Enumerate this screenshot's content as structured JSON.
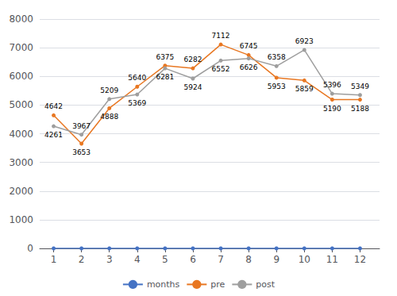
{
  "chart_data": {
    "type": "line",
    "x": [
      1,
      2,
      3,
      4,
      5,
      6,
      7,
      8,
      9,
      10,
      11,
      12
    ],
    "xlim": [
      0.5,
      12.7
    ],
    "xticks": [
      1,
      2,
      3,
      4,
      5,
      6,
      7,
      8,
      9,
      10,
      11,
      12
    ],
    "ylim": [
      0,
      8000
    ],
    "yticks": [
      0,
      1000,
      2000,
      3000,
      4000,
      5000,
      6000,
      7000,
      8000
    ],
    "grid": true,
    "legend": "bottom",
    "series": [
      {
        "name": "months",
        "color": "#4472C4",
        "marker": "circle",
        "values": [
          0,
          0,
          0,
          0,
          0,
          0,
          0,
          0,
          0,
          0,
          0,
          0
        ]
      },
      {
        "name": "pre",
        "color": "#E87722",
        "marker": "circle",
        "data_labels": true,
        "values": [
          4642,
          3653,
          4888,
          5640,
          6375,
          6282,
          7112,
          6745,
          5953,
          5859,
          5190,
          5188
        ]
      },
      {
        "name": "post",
        "color": "#9E9E9E",
        "marker": "circle",
        "data_labels": true,
        "values": [
          4261,
          3967,
          5209,
          5369,
          6281,
          5924,
          6552,
          6626,
          6358,
          6923,
          5396,
          5349
        ]
      }
    ]
  }
}
